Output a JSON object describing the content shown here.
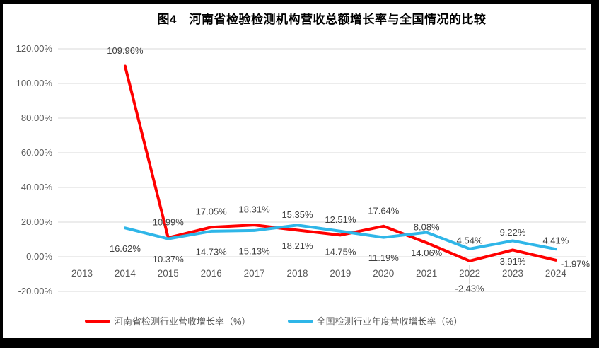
{
  "chart_data": {
    "type": "line",
    "title": "图4　河南省检验检测机构营收总额增长率与全国情况的比较",
    "categories": [
      "2013",
      "2014",
      "2015",
      "2016",
      "2017",
      "2018",
      "2019",
      "2020",
      "2021",
      "2022",
      "2023",
      "2024"
    ],
    "series": [
      {
        "name": "河南省检测行业营收增长率（%）",
        "color": "#FF0000",
        "values": [
          null,
          109.96,
          10.99,
          17.05,
          18.31,
          15.35,
          12.51,
          17.64,
          8.08,
          -2.43,
          3.91,
          -1.97
        ],
        "labels": [
          "",
          "109.96%",
          "10.99%",
          "17.05%",
          "18.31%",
          "15.35%",
          "12.51%",
          "17.64%",
          "8.08%",
          "-2.43%",
          "3.91%",
          "-1.97%"
        ],
        "label_placement": [
          "none",
          "above",
          "above",
          "above",
          "above",
          "above",
          "above",
          "above",
          "above",
          "below-leader",
          "below",
          "right"
        ]
      },
      {
        "name": "全国检测行业年度营收增长率（%）",
        "color": "#2FB6E8",
        "values": [
          null,
          16.62,
          10.37,
          14.73,
          15.13,
          18.21,
          14.75,
          11.19,
          14.06,
          4.54,
          9.22,
          4.41
        ],
        "labels": [
          "",
          "16.62%",
          "10.37%",
          "14.73%",
          "15.13%",
          "18.21%",
          "14.75%",
          "11.19%",
          "14.06%",
          "4.54%",
          "9.22%",
          "4.41%"
        ],
        "label_placement": [
          "none",
          "below",
          "below",
          "below",
          "below",
          "below",
          "below",
          "below",
          "below",
          "above",
          "above",
          "above"
        ]
      }
    ],
    "y_axis": {
      "ticks": [
        "120.00%",
        "100.00%",
        "80.00%",
        "60.00%",
        "40.00%",
        "20.00%",
        "0.00%",
        "-20.00%"
      ],
      "min": -20,
      "max": 120,
      "step": 20
    },
    "grid": true,
    "legend_position": "bottom",
    "colors": {
      "gridline": "#D9D9D9",
      "axis_text": "#595959",
      "data_label_text": "#404040",
      "leader_line": "#A6A6A6",
      "frame": "#000000"
    }
  }
}
